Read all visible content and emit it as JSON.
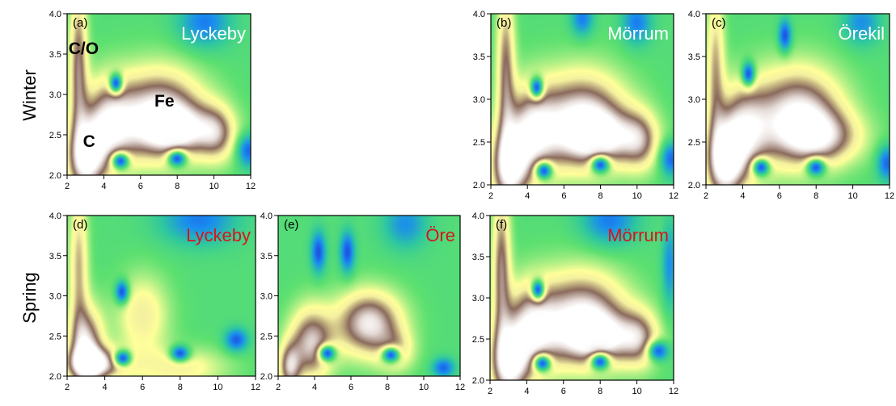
{
  "row_labels": [
    "Winter",
    "Spring"
  ],
  "colors": {
    "winter_label": "#ffffff",
    "spring_label": "#d8141c",
    "colormap": [
      "#ffffff",
      "#e6dcd8",
      "#8a6a5c",
      "#f4f0a0",
      "#ffff9a",
      "#5ce070",
      "#2ec7a0",
      "#1a8cf0",
      "#2040d8"
    ]
  },
  "chart_data": [
    {
      "type": "heatmap",
      "tag": "(a)",
      "site": "Lyckeby",
      "season": "Winter",
      "xlim": [
        2,
        12
      ],
      "ylim": [
        2.0,
        4.0
      ],
      "xticks": [
        "2",
        "4",
        "6",
        "8",
        "10",
        "12"
      ],
      "yticks": [
        "2.0",
        "2.5",
        "3.0",
        "3.5",
        "4.0"
      ],
      "annotations": [
        {
          "text": "C/O",
          "x": 2.9,
          "y": 3.5
        },
        {
          "text": "Fe",
          "x": 7.3,
          "y": 2.85
        },
        {
          "text": "C",
          "x": 3.2,
          "y": 2.35
        }
      ],
      "peaks": [
        [
          7.0,
          2.75,
          1.0,
          2.4,
          0.55
        ],
        [
          4.2,
          2.6,
          0.8,
          1.4,
          0.55
        ],
        [
          3.0,
          2.2,
          0.95,
          1.0,
          0.45
        ],
        [
          2.6,
          3.4,
          0.7,
          0.5,
          0.9
        ],
        [
          8.2,
          2.55,
          0.6,
          2.2,
          0.3
        ],
        [
          10.2,
          2.5,
          0.5,
          1.0,
          0.35
        ]
      ],
      "minima": [
        [
          4.65,
          3.14,
          0.9,
          0.35,
          0.12
        ],
        [
          4.9,
          2.17,
          0.9,
          0.45,
          0.1
        ],
        [
          8.0,
          2.2,
          0.9,
          0.5,
          0.1
        ],
        [
          11.9,
          2.3,
          0.8,
          0.6,
          0.2
        ],
        [
          9.5,
          3.9,
          0.7,
          1.4,
          0.3
        ]
      ]
    },
    {
      "type": "heatmap",
      "tag": "(b)",
      "site": "Mörrum",
      "season": "Winter",
      "xlim": [
        2,
        12
      ],
      "ylim": [
        2.0,
        4.0
      ],
      "xticks": [
        "2",
        "4",
        "6",
        "8",
        "10",
        "12"
      ],
      "yticks": [
        "2.0",
        "2.5",
        "3.0",
        "3.5",
        "4.0"
      ],
      "annotations": [],
      "peaks": [
        [
          7.0,
          2.75,
          1.0,
          2.4,
          0.55
        ],
        [
          4.2,
          2.6,
          0.8,
          1.4,
          0.55
        ],
        [
          3.0,
          2.2,
          0.95,
          1.0,
          0.45
        ],
        [
          2.8,
          3.4,
          0.65,
          0.5,
          0.9
        ],
        [
          8.2,
          2.55,
          0.6,
          2.2,
          0.3
        ],
        [
          10.2,
          2.5,
          0.5,
          1.0,
          0.35
        ]
      ],
      "minima": [
        [
          4.5,
          3.14,
          0.9,
          0.35,
          0.12
        ],
        [
          4.9,
          2.16,
          0.9,
          0.45,
          0.1
        ],
        [
          8.0,
          2.23,
          0.9,
          0.5,
          0.1
        ],
        [
          11.9,
          2.3,
          0.8,
          0.6,
          0.2
        ],
        [
          7.0,
          3.95,
          0.7,
          0.6,
          0.2
        ],
        [
          10.0,
          3.9,
          0.7,
          0.8,
          0.25
        ]
      ]
    },
    {
      "type": "heatmap",
      "tag": "(c)",
      "site": "Örekil",
      "season": "Winter",
      "xlim": [
        2,
        12
      ],
      "ylim": [
        2.0,
        4.0
      ],
      "xticks": [
        "2",
        "4",
        "6",
        "8",
        "10",
        "12"
      ],
      "yticks": [
        "2.0",
        "2.5",
        "3.0",
        "3.5",
        "4.0"
      ],
      "annotations": [],
      "peaks": [
        [
          7.0,
          2.8,
          1.0,
          2.4,
          0.55
        ],
        [
          4.0,
          2.6,
          0.8,
          1.4,
          0.55
        ],
        [
          3.0,
          2.25,
          0.95,
          1.0,
          0.45
        ],
        [
          2.5,
          3.4,
          0.55,
          0.5,
          0.9
        ],
        [
          8.4,
          2.55,
          0.55,
          2.2,
          0.3
        ]
      ],
      "minima": [
        [
          4.3,
          3.3,
          0.9,
          0.35,
          0.14
        ],
        [
          5.0,
          2.2,
          0.9,
          0.45,
          0.1
        ],
        [
          8.0,
          2.2,
          0.9,
          0.5,
          0.1
        ],
        [
          11.9,
          2.25,
          0.8,
          0.55,
          0.2
        ],
        [
          6.3,
          3.75,
          0.9,
          0.35,
          0.18
        ],
        [
          10.5,
          3.9,
          0.6,
          1.0,
          0.25
        ]
      ]
    },
    {
      "type": "heatmap",
      "tag": "(d)",
      "site": "Lyckeby",
      "season": "Spring",
      "xlim": [
        2,
        12
      ],
      "ylim": [
        2.0,
        4.0
      ],
      "xticks": [
        "2",
        "4",
        "6",
        "8",
        "10",
        "12"
      ],
      "yticks": [
        "2.0",
        "2.5",
        "3.0",
        "3.5",
        "4.0"
      ],
      "annotations": [],
      "peaks": [
        [
          3.0,
          2.35,
          0.9,
          0.9,
          0.5
        ],
        [
          3.6,
          2.15,
          0.8,
          1.6,
          0.2
        ],
        [
          6.0,
          2.75,
          0.45,
          1.4,
          0.5
        ],
        [
          2.6,
          3.4,
          0.55,
          0.5,
          0.9
        ],
        [
          8.0,
          2.1,
          0.4,
          2.5,
          0.25
        ]
      ],
      "minima": [
        [
          4.9,
          3.05,
          0.9,
          0.35,
          0.14
        ],
        [
          4.95,
          2.22,
          0.9,
          0.45,
          0.1
        ],
        [
          8.0,
          2.28,
          0.9,
          0.5,
          0.1
        ],
        [
          11.0,
          2.45,
          0.85,
          0.6,
          0.14
        ],
        [
          9.0,
          3.95,
          0.7,
          2.0,
          0.3
        ]
      ]
    },
    {
      "type": "heatmap",
      "tag": "(e)",
      "site": "Öre",
      "season": "Spring",
      "xlim": [
        2,
        12
      ],
      "ylim": [
        2.0,
        4.0
      ],
      "xticks": [
        "2",
        "4",
        "6",
        "8",
        "10",
        "12"
      ],
      "yticks": [
        "2.0",
        "2.5",
        "3.0",
        "3.5",
        "4.0"
      ],
      "annotations": [],
      "peaks": [
        [
          7.0,
          2.65,
          0.95,
          1.8,
          0.4
        ],
        [
          3.8,
          2.4,
          0.85,
          1.2,
          0.45
        ],
        [
          2.6,
          2.1,
          0.7,
          0.6,
          0.3
        ],
        [
          8.5,
          2.3,
          0.4,
          1.0,
          0.25
        ]
      ],
      "minima": [
        [
          4.7,
          2.28,
          0.9,
          0.45,
          0.1
        ],
        [
          8.2,
          2.26,
          0.9,
          0.5,
          0.1
        ],
        [
          11.1,
          2.1,
          0.8,
          0.6,
          0.12
        ],
        [
          4.2,
          3.55,
          0.9,
          0.4,
          0.25
        ],
        [
          5.8,
          3.55,
          0.9,
          0.4,
          0.25
        ],
        [
          9.0,
          3.9,
          0.6,
          1.2,
          0.3
        ]
      ]
    },
    {
      "type": "heatmap",
      "tag": "(f)",
      "site": "Mörrum",
      "season": "Spring",
      "xlim": [
        2,
        12
      ],
      "ylim": [
        2.0,
        4.0
      ],
      "xticks": [
        "2",
        "4",
        "6",
        "8",
        "10",
        "12"
      ],
      "yticks": [
        "2.0",
        "2.5",
        "3.0",
        "3.5",
        "4.0"
      ],
      "annotations": [],
      "peaks": [
        [
          7.0,
          2.75,
          1.0,
          2.4,
          0.55
        ],
        [
          4.2,
          2.6,
          0.8,
          1.4,
          0.55
        ],
        [
          3.0,
          2.2,
          0.95,
          1.0,
          0.45
        ],
        [
          2.6,
          3.4,
          0.7,
          0.5,
          0.9
        ],
        [
          8.2,
          2.5,
          0.6,
          2.2,
          0.3
        ],
        [
          10.2,
          2.5,
          0.5,
          1.0,
          0.35
        ]
      ],
      "minima": [
        [
          4.6,
          3.1,
          0.9,
          0.35,
          0.12
        ],
        [
          4.85,
          2.2,
          0.9,
          0.45,
          0.1
        ],
        [
          8.0,
          2.22,
          0.9,
          0.5,
          0.1
        ],
        [
          11.2,
          2.35,
          0.85,
          0.55,
          0.12
        ],
        [
          8.5,
          3.95,
          0.7,
          1.5,
          0.3
        ],
        [
          11.8,
          3.4,
          0.6,
          0.4,
          0.5
        ]
      ]
    }
  ]
}
